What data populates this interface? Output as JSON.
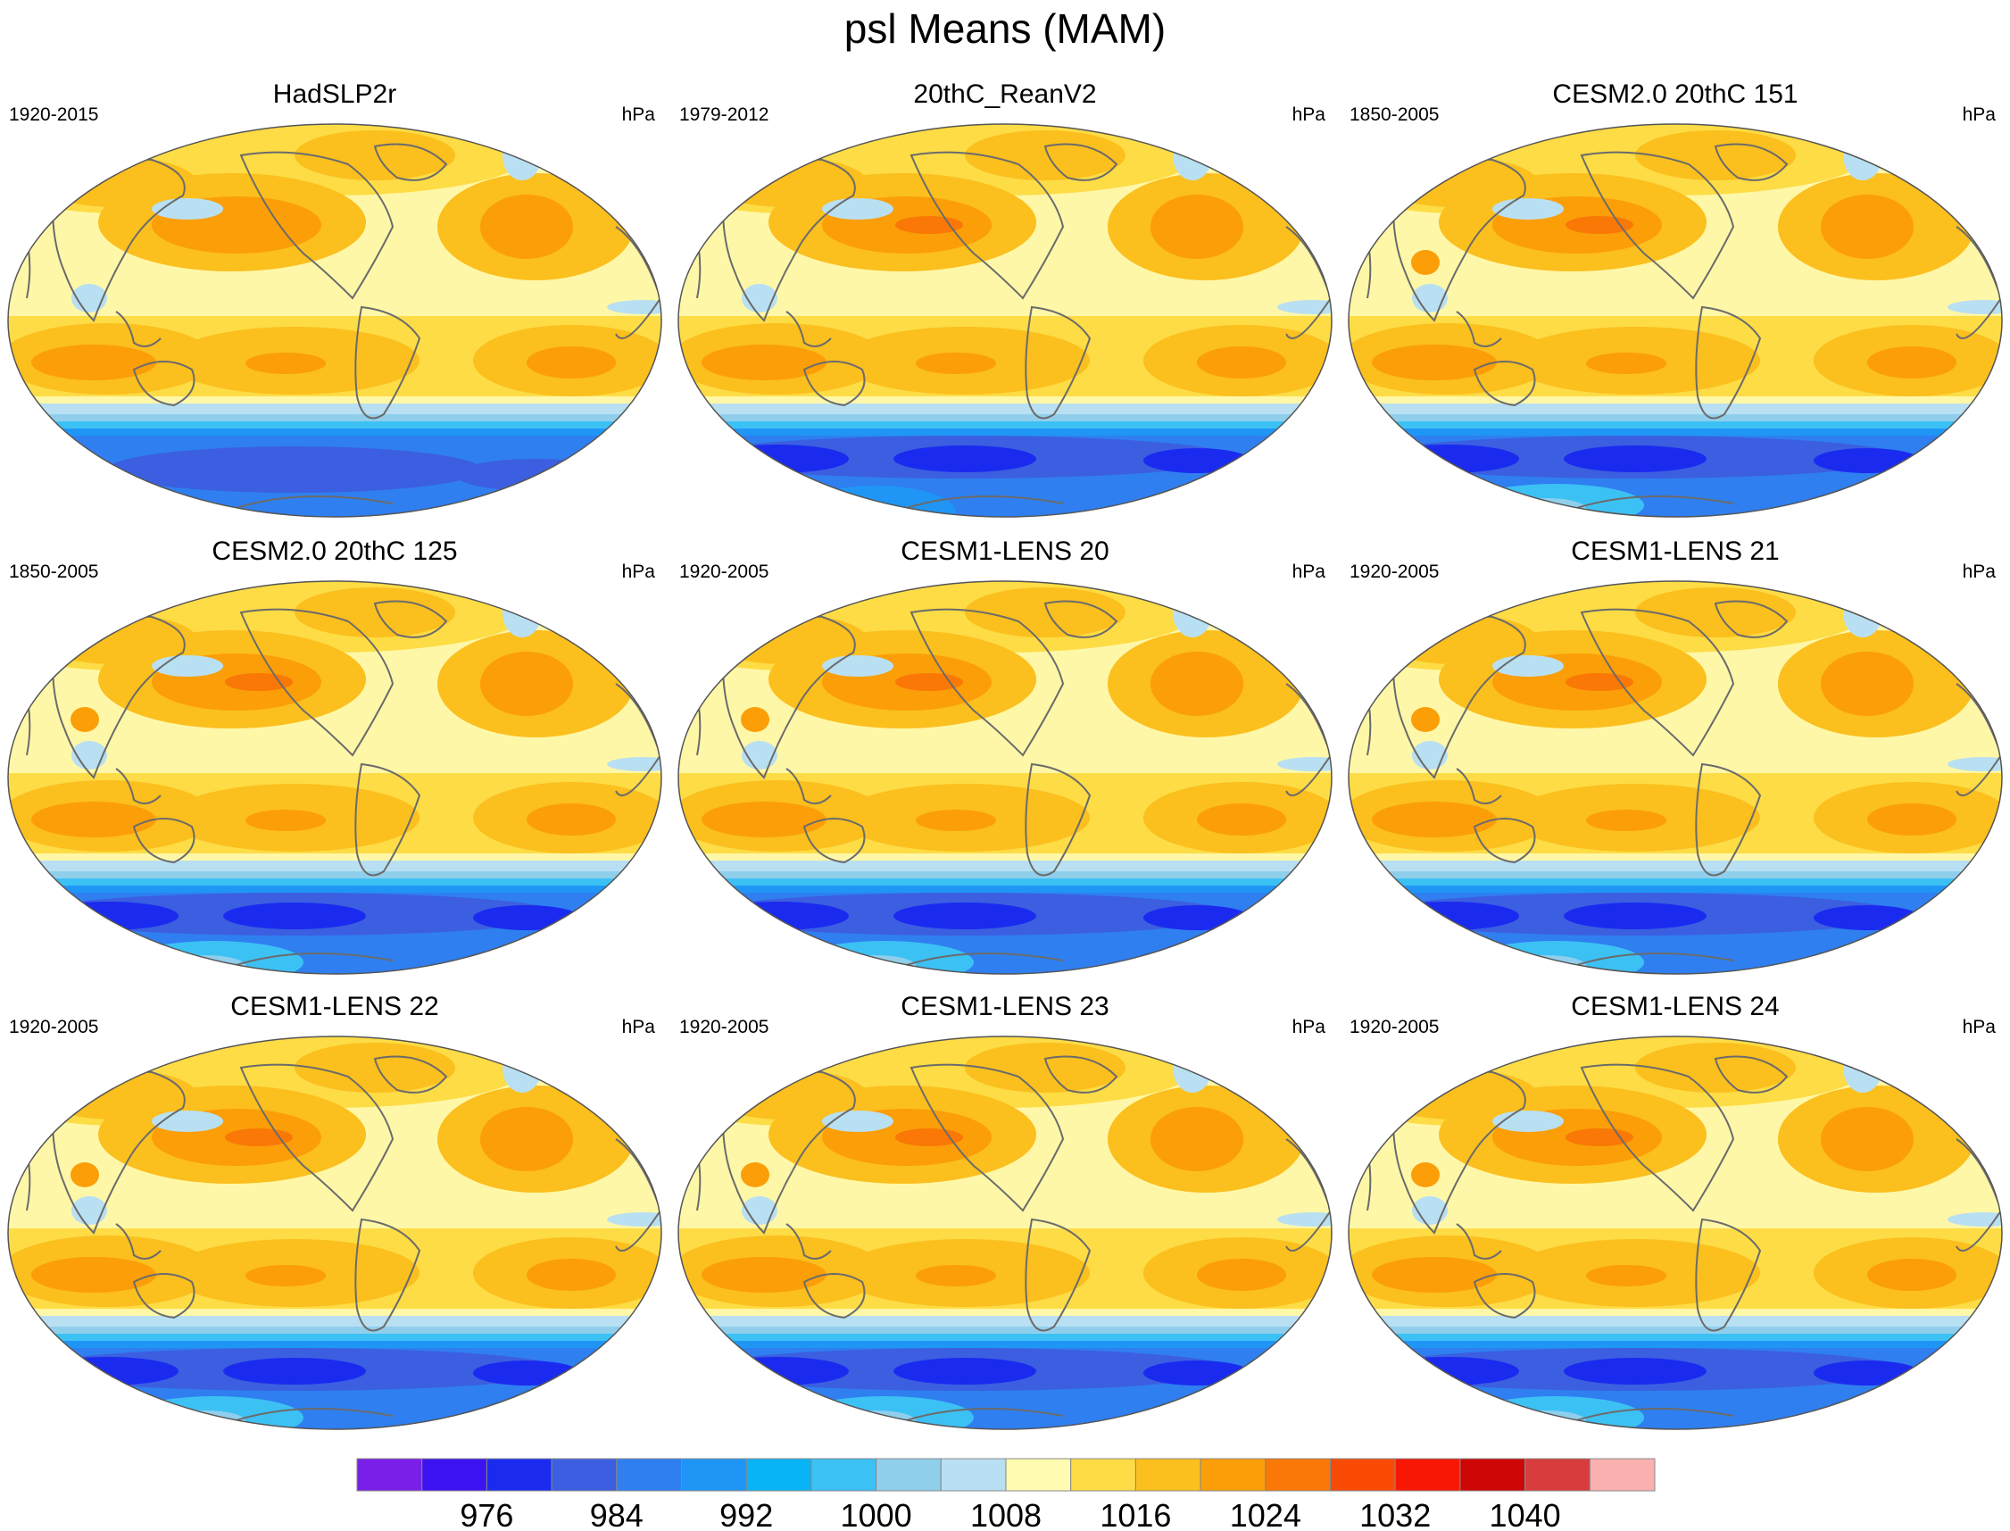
{
  "title": "psl Means (MAM)",
  "panels": [
    {
      "title": "HadSLP2r",
      "years": "1920-2015",
      "units": "hPa",
      "variant": "obs"
    },
    {
      "title": "20thC_ReanV2",
      "years": "1979-2012",
      "units": "hPa",
      "variant": "rean"
    },
    {
      "title": "CESM2.0 20thC 151",
      "years": "1850-2005",
      "units": "hPa",
      "variant": "model"
    },
    {
      "title": "CESM2.0 20thC 125",
      "years": "1850-2005",
      "units": "hPa",
      "variant": "model"
    },
    {
      "title": "CESM1-LENS 20",
      "years": "1920-2005",
      "units": "hPa",
      "variant": "model"
    },
    {
      "title": "CESM1-LENS 21",
      "years": "1920-2005",
      "units": "hPa",
      "variant": "model"
    },
    {
      "title": "CESM1-LENS 22",
      "years": "1920-2005",
      "units": "hPa",
      "variant": "model"
    },
    {
      "title": "CESM1-LENS 23",
      "years": "1920-2005",
      "units": "hPa",
      "variant": "model"
    },
    {
      "title": "CESM1-LENS 24",
      "years": "1920-2005",
      "units": "hPa",
      "variant": "model"
    }
  ],
  "colorbar": {
    "colors": [
      "#7a1fe8",
      "#3d12f0",
      "#1a2bef",
      "#3b5fe0",
      "#2f7ff0",
      "#1f96f5",
      "#08b4f5",
      "#3cc1f5",
      "#90cfec",
      "#b9e0f2",
      "#fffbb0",
      "#fddc45",
      "#fbbf1e",
      "#fb9e08",
      "#f97806",
      "#f94a06",
      "#f81704",
      "#cf0606",
      "#d83c3c",
      "#fbb0b0"
    ],
    "labels": [
      "976",
      "984",
      "992",
      "1000",
      "1008",
      "1016",
      "1024",
      "1032",
      "1040"
    ]
  },
  "palette": {
    "bg": "#fff7a8",
    "p1": "#fddc45",
    "p2": "#fbbf1e",
    "p3": "#fb9e08",
    "p4": "#f97806",
    "lb": "#b9e0f2",
    "b1": "#90cfec",
    "b2": "#3cc1f5",
    "b3": "#1f96f5",
    "b4": "#2f7ff0",
    "b5": "#3b5fe0",
    "b6": "#1a2bef",
    "coast": "#6b6b6b"
  }
}
